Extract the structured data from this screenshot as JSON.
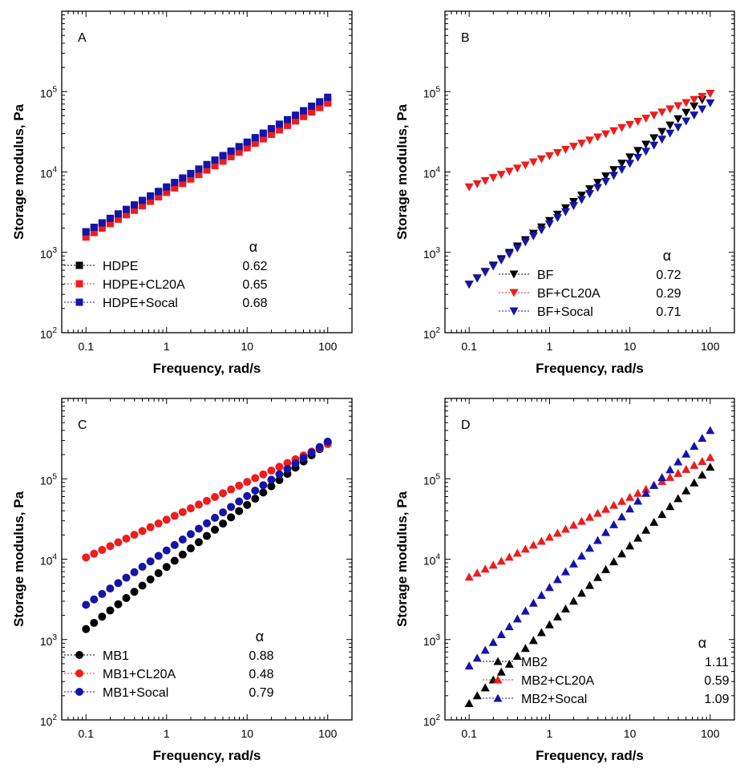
{
  "chart_data": [
    {
      "panel_label": "A",
      "type": "scatter",
      "xlabel": "Frequency, rad/s",
      "ylabel": "Storage modulus, Pa",
      "xscale": "log",
      "yscale": "log",
      "xlim": [
        0.05,
        200
      ],
      "ylim": [
        100,
        1000000
      ],
      "x_ticks": [
        "0.1",
        "1",
        "10",
        "100"
      ],
      "y_ticks": [
        {
          "base": "10",
          "exp": "2"
        },
        {
          "base": "10",
          "exp": "3"
        },
        {
          "base": "10",
          "exp": "4"
        },
        {
          "base": "10",
          "exp": "5"
        }
      ],
      "marker": "square",
      "legend_position": "bottom-left",
      "alpha_header": "α",
      "series": [
        {
          "name": "HDPE",
          "alpha": "0.62",
          "color": "#000000",
          "y_at_0_1": 1800,
          "y_at_100": 77000
        },
        {
          "name": "HDPE+CL20A",
          "alpha": "0.65",
          "color": "#ee1c1c",
          "y_at_0_1": 1550,
          "y_at_100": 72000
        },
        {
          "name": "HDPE+Socal",
          "alpha": "0.68",
          "color": "#1414a8",
          "y_at_0_1": 1800,
          "y_at_100": 85000
        }
      ]
    },
    {
      "panel_label": "B",
      "type": "scatter",
      "xlabel": "Frequency, rad/s",
      "ylabel": "Storage modulus, Pa",
      "xscale": "log",
      "yscale": "log",
      "xlim": [
        0.05,
        200
      ],
      "ylim": [
        100,
        1000000
      ],
      "x_ticks": [
        "0.1",
        "1",
        "10",
        "100"
      ],
      "y_ticks": [
        {
          "base": "10",
          "exp": "2"
        },
        {
          "base": "10",
          "exp": "3"
        },
        {
          "base": "10",
          "exp": "4"
        },
        {
          "base": "10",
          "exp": "5"
        }
      ],
      "marker": "triangle-down",
      "legend_position": "bottom-right",
      "alpha_header": "α",
      "series": [
        {
          "name": "BF",
          "alpha": "0.72",
          "color": "#000000",
          "y_at_0_1": 400,
          "y_at_100": 95000
        },
        {
          "name": "BF+CL20A",
          "alpha": "0.29",
          "color": "#ee1c1c",
          "y_at_0_1": 6500,
          "y_at_100": 95000
        },
        {
          "name": "BF+Socal",
          "alpha": "0.71",
          "color": "#1414a8",
          "y_at_0_1": 400,
          "y_at_100": 72000
        }
      ]
    },
    {
      "panel_label": "C",
      "type": "scatter",
      "xlabel": "Frequency, rad/s",
      "ylabel": "Storage modulus, Pa",
      "xscale": "log",
      "yscale": "log",
      "xlim": [
        0.05,
        200
      ],
      "ylim": [
        100,
        1000000
      ],
      "x_ticks": [
        "0.1",
        "1",
        "10",
        "100"
      ],
      "y_ticks": [
        {
          "base": "10",
          "exp": "2"
        },
        {
          "base": "10",
          "exp": "3"
        },
        {
          "base": "10",
          "exp": "4"
        },
        {
          "base": "10",
          "exp": "5"
        }
      ],
      "marker": "circle",
      "legend_position": "bottom-left",
      "alpha_header": "α",
      "series": [
        {
          "name": "MB1",
          "alpha": "0.88",
          "color": "#000000",
          "y_at_0_1": 1350,
          "y_at_100": 280000
        },
        {
          "name": "MB1+CL20A",
          "alpha": "0.48",
          "color": "#ee1c1c",
          "y_at_0_1": 10500,
          "y_at_100": 270000
        },
        {
          "name": "MB1+Socal",
          "alpha": "0.79",
          "color": "#1414a8",
          "y_at_0_1": 2700,
          "y_at_100": 290000
        }
      ]
    },
    {
      "panel_label": "D",
      "type": "scatter",
      "xlabel": "Frequency, rad/s",
      "ylabel": "Storage modulus, Pa",
      "xscale": "log",
      "yscale": "log",
      "xlim": [
        0.05,
        200
      ],
      "ylim": [
        100,
        1000000
      ],
      "x_ticks": [
        "0.1",
        "1",
        "10",
        "100"
      ],
      "y_ticks": [
        {
          "base": "10",
          "exp": "2"
        },
        {
          "base": "10",
          "exp": "3"
        },
        {
          "base": "10",
          "exp": "4"
        },
        {
          "base": "10",
          "exp": "5"
        }
      ],
      "marker": "triangle-up",
      "legend_position": "bottom-right",
      "alpha_header": "α",
      "series": [
        {
          "name": "MB2",
          "alpha": "1.11",
          "color": "#000000",
          "y_at_0_1": 160,
          "y_at_100": 140000
        },
        {
          "name": "MB2+CL20A",
          "alpha": "0.59",
          "color": "#ee1c1c",
          "y_at_0_1": 6000,
          "y_at_100": 185000
        },
        {
          "name": "MB2+Socal",
          "alpha": "1.09",
          "color": "#1414a8",
          "y_at_0_1": 470,
          "y_at_100": 400000
        }
      ]
    }
  ]
}
